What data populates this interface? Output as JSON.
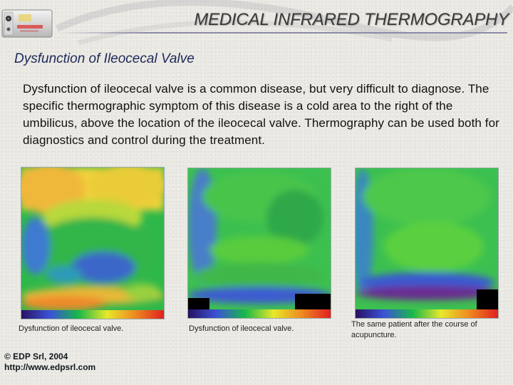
{
  "header": {
    "title": "MEDICAL INFRARED THERMOGRAPHY"
  },
  "slide": {
    "subtitle": "Dysfunction of Ileocecal Valve",
    "body": "Dysfunction of ileocecal valve is a common disease, but very difficult to diagnose. The specific thermographic symptom of this disease is a cold area to the right of the umbilicus, above the location of the ileocecal valve. Thermography can be used both for diagnostics and control during the treatment."
  },
  "figures": [
    {
      "caption": "Dysfunction of ileocecal valve."
    },
    {
      "caption": "Dysfunction of ileocecal valve."
    },
    {
      "caption": "The same patient after the course of acupuncture."
    }
  ],
  "footer": {
    "copyright": "© EDP Srl, 2004",
    "url": "http://www.edpsrl.com"
  },
  "colors": {
    "title_text": "#3a3a3a",
    "subtitle_text": "#1c2a5a",
    "background": "#ebe9e3"
  }
}
